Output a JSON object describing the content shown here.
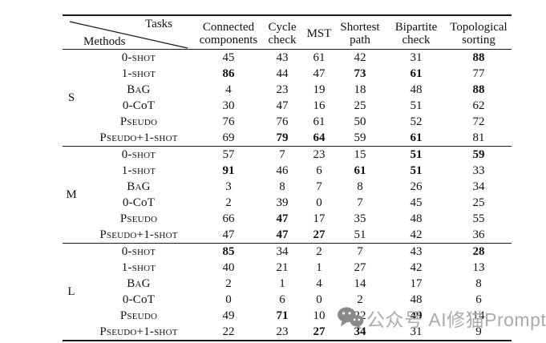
{
  "table": {
    "corner": {
      "tasks": "Tasks",
      "methods": "Methods"
    },
    "columns": [
      {
        "id": "connected-components",
        "lines": [
          "Connected",
          "components"
        ]
      },
      {
        "id": "cycle-check",
        "lines": [
          "Cycle",
          "check"
        ]
      },
      {
        "id": "mst",
        "lines": [
          "MST"
        ]
      },
      {
        "id": "shortest-path",
        "lines": [
          "Shortest",
          "path"
        ]
      },
      {
        "id": "bipartite-check",
        "lines": [
          "Bipartite",
          "check"
        ]
      },
      {
        "id": "topological-sorting",
        "lines": [
          "Topological",
          "sorting"
        ]
      }
    ],
    "groups": [
      {
        "label": "S",
        "rows": [
          {
            "method": "0-shot",
            "smallcaps": true,
            "values": [
              45,
              43,
              61,
              42,
              31,
              88
            ],
            "bold": [
              5
            ]
          },
          {
            "method": "1-shot",
            "smallcaps": true,
            "values": [
              86,
              44,
              47,
              73,
              61,
              77
            ],
            "bold": [
              0,
              3,
              4
            ]
          },
          {
            "method": "BaG",
            "smallcaps": true,
            "values": [
              4,
              23,
              19,
              18,
              48,
              88
            ],
            "bold": [
              5
            ]
          },
          {
            "method": "0-CoT",
            "smallcaps": false,
            "values": [
              30,
              47,
              16,
              25,
              51,
              62
            ],
            "bold": []
          },
          {
            "method": "Pseudo",
            "smallcaps": true,
            "values": [
              76,
              76,
              61,
              50,
              52,
              72
            ],
            "bold": []
          },
          {
            "method": "Pseudo+1-shot",
            "smallcaps": true,
            "values": [
              69,
              79,
              64,
              59,
              61,
              81
            ],
            "bold": [
              1,
              2,
              4
            ]
          }
        ]
      },
      {
        "label": "M",
        "rows": [
          {
            "method": "0-shot",
            "smallcaps": true,
            "values": [
              57,
              7,
              23,
              15,
              51,
              59
            ],
            "bold": [
              4,
              5
            ]
          },
          {
            "method": "1-shot",
            "smallcaps": true,
            "values": [
              91,
              46,
              6,
              61,
              51,
              33
            ],
            "bold": [
              0,
              3,
              4
            ]
          },
          {
            "method": "BaG",
            "smallcaps": true,
            "values": [
              3,
              8,
              7,
              8,
              26,
              34
            ],
            "bold": []
          },
          {
            "method": "0-CoT",
            "smallcaps": false,
            "values": [
              2,
              39,
              0,
              7,
              45,
              25
            ],
            "bold": []
          },
          {
            "method": "Pseudo",
            "smallcaps": true,
            "values": [
              66,
              47,
              17,
              35,
              48,
              55
            ],
            "bold": [
              1
            ]
          },
          {
            "method": "Pseudo+1-shot",
            "smallcaps": true,
            "values": [
              47,
              47,
              27,
              51,
              42,
              36
            ],
            "bold": [
              1,
              2
            ]
          }
        ]
      },
      {
        "label": "L",
        "rows": [
          {
            "method": "0-shot",
            "smallcaps": true,
            "values": [
              85,
              34,
              2,
              7,
              43,
              28
            ],
            "bold": [
              0,
              5
            ]
          },
          {
            "method": "1-shot",
            "smallcaps": true,
            "values": [
              40,
              21,
              1,
              27,
              42,
              13
            ],
            "bold": []
          },
          {
            "method": "BaG",
            "smallcaps": true,
            "values": [
              2,
              1,
              4,
              14,
              17,
              8
            ],
            "bold": []
          },
          {
            "method": "0-CoT",
            "smallcaps": false,
            "values": [
              0,
              6,
              0,
              2,
              48,
              6
            ],
            "bold": []
          },
          {
            "method": "Pseudo",
            "smallcaps": true,
            "values": [
              49,
              71,
              10,
              22,
              49,
              14
            ],
            "bold": [
              1,
              4
            ]
          },
          {
            "method": "Pseudo+1-shot",
            "smallcaps": true,
            "values": [
              22,
              23,
              27,
              34,
              31,
              9
            ],
            "bold": [
              2,
              3
            ]
          }
        ]
      }
    ]
  },
  "watermark": {
    "icon": "wechat-icon",
    "text": "公众号 AI修猫Prompt",
    "icon_color": "#8a8a8a",
    "text_color": "#ababab"
  },
  "colors": {
    "background": "#ffffff",
    "text": "#111111",
    "rule": "#1a1a1a"
  }
}
